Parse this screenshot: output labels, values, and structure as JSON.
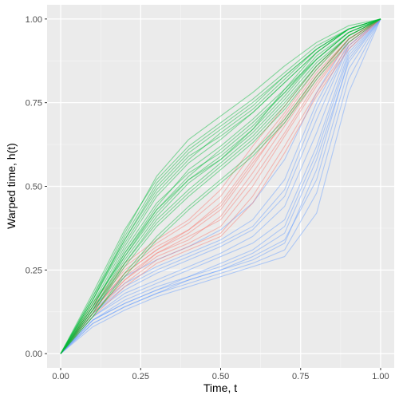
{
  "chart_data": {
    "type": "line",
    "title": "",
    "xlabel": "Time, t",
    "ylabel": "Warped time, h(t)",
    "xlim": [
      -0.0425,
      1.0425
    ],
    "ylim": [
      -0.0425,
      1.0425
    ],
    "x_ticks": [
      0.0,
      0.25,
      0.5,
      0.75,
      1.0
    ],
    "x_tick_labels": [
      "0.00",
      "0.25",
      "0.50",
      "0.75",
      "1.00"
    ],
    "y_ticks": [
      0.0,
      0.25,
      0.5,
      0.75,
      1.0
    ],
    "y_tick_labels": [
      "0.00",
      "0.25",
      "0.50",
      "0.75",
      "1.00"
    ],
    "grid": true,
    "legend": "none",
    "x": [
      0.0,
      0.1,
      0.2,
      0.3,
      0.4,
      0.5,
      0.6,
      0.7,
      0.8,
      0.9,
      1.0
    ],
    "series": [
      {
        "color": "#619CFF",
        "values": [
          0.0,
          0.1,
          0.15,
          0.19,
          0.22,
          0.25,
          0.28,
          0.33,
          0.55,
          0.88,
          1.0
        ]
      },
      {
        "color": "#619CFF",
        "values": [
          0.0,
          0.09,
          0.14,
          0.18,
          0.21,
          0.24,
          0.27,
          0.31,
          0.48,
          0.82,
          1.0
        ]
      },
      {
        "color": "#619CFF",
        "values": [
          0.0,
          0.11,
          0.17,
          0.21,
          0.25,
          0.29,
          0.33,
          0.4,
          0.62,
          0.9,
          1.0
        ]
      },
      {
        "color": "#619CFF",
        "values": [
          0.0,
          0.12,
          0.19,
          0.24,
          0.28,
          0.32,
          0.37,
          0.47,
          0.7,
          0.92,
          1.0
        ]
      },
      {
        "color": "#619CFF",
        "values": [
          0.0,
          0.1,
          0.16,
          0.2,
          0.23,
          0.26,
          0.3,
          0.36,
          0.58,
          0.87,
          1.0
        ]
      },
      {
        "color": "#619CFF",
        "values": [
          0.0,
          0.13,
          0.21,
          0.26,
          0.3,
          0.34,
          0.4,
          0.52,
          0.75,
          0.93,
          1.0
        ]
      },
      {
        "color": "#619CFF",
        "values": [
          0.0,
          0.08,
          0.13,
          0.17,
          0.2,
          0.23,
          0.26,
          0.29,
          0.42,
          0.78,
          1.0
        ]
      },
      {
        "color": "#619CFF",
        "values": [
          0.0,
          0.11,
          0.18,
          0.22,
          0.26,
          0.3,
          0.35,
          0.44,
          0.66,
          0.91,
          1.0
        ]
      },
      {
        "color": "#619CFF",
        "values": [
          0.0,
          0.12,
          0.2,
          0.25,
          0.29,
          0.33,
          0.38,
          0.49,
          0.73,
          0.92,
          1.0
        ]
      },
      {
        "color": "#619CFF",
        "values": [
          0.0,
          0.1,
          0.15,
          0.19,
          0.23,
          0.27,
          0.31,
          0.38,
          0.6,
          0.89,
          1.0
        ]
      },
      {
        "color": "#619CFF",
        "values": [
          0.0,
          0.14,
          0.23,
          0.28,
          0.32,
          0.37,
          0.45,
          0.58,
          0.78,
          0.94,
          1.0
        ]
      },
      {
        "color": "#619CFF",
        "values": [
          0.0,
          0.09,
          0.14,
          0.18,
          0.22,
          0.25,
          0.29,
          0.34,
          0.52,
          0.85,
          1.0
        ]
      },
      {
        "color": "#F8766D",
        "values": [
          0.0,
          0.12,
          0.22,
          0.29,
          0.33,
          0.38,
          0.5,
          0.65,
          0.8,
          0.93,
          1.0
        ]
      },
      {
        "color": "#F8766D",
        "values": [
          0.0,
          0.13,
          0.23,
          0.3,
          0.34,
          0.41,
          0.54,
          0.68,
          0.82,
          0.94,
          1.0
        ]
      },
      {
        "color": "#F8766D",
        "values": [
          0.0,
          0.14,
          0.25,
          0.32,
          0.37,
          0.45,
          0.58,
          0.71,
          0.84,
          0.94,
          1.0
        ]
      },
      {
        "color": "#F8766D",
        "values": [
          0.0,
          0.12,
          0.21,
          0.28,
          0.32,
          0.36,
          0.47,
          0.62,
          0.78,
          0.92,
          1.0
        ]
      },
      {
        "color": "#F8766D",
        "values": [
          0.0,
          0.15,
          0.27,
          0.34,
          0.4,
          0.49,
          0.62,
          0.74,
          0.86,
          0.95,
          1.0
        ]
      },
      {
        "color": "#F8766D",
        "values": [
          0.0,
          0.13,
          0.24,
          0.31,
          0.36,
          0.43,
          0.56,
          0.7,
          0.83,
          0.94,
          1.0
        ]
      },
      {
        "color": "#F8766D",
        "values": [
          0.0,
          0.11,
          0.2,
          0.27,
          0.31,
          0.35,
          0.45,
          0.6,
          0.77,
          0.91,
          1.0
        ]
      },
      {
        "color": "#F8766D",
        "values": [
          0.0,
          0.14,
          0.26,
          0.33,
          0.39,
          0.47,
          0.6,
          0.72,
          0.85,
          0.95,
          1.0
        ]
      },
      {
        "color": "#F8766D",
        "values": [
          0.0,
          0.12,
          0.22,
          0.3,
          0.35,
          0.4,
          0.52,
          0.66,
          0.81,
          0.93,
          1.0
        ]
      },
      {
        "color": "#F8766D",
        "values": [
          0.0,
          0.13,
          0.24,
          0.31,
          0.37,
          0.44,
          0.57,
          0.69,
          0.83,
          0.94,
          1.0
        ]
      },
      {
        "color": "#00BA38",
        "values": [
          0.0,
          0.14,
          0.3,
          0.44,
          0.55,
          0.62,
          0.7,
          0.79,
          0.88,
          0.96,
          1.0
        ]
      },
      {
        "color": "#00BA38",
        "values": [
          0.0,
          0.16,
          0.34,
          0.5,
          0.6,
          0.67,
          0.74,
          0.83,
          0.91,
          0.97,
          1.0
        ]
      },
      {
        "color": "#00BA38",
        "values": [
          0.0,
          0.12,
          0.26,
          0.38,
          0.47,
          0.55,
          0.63,
          0.73,
          0.85,
          0.95,
          1.0
        ]
      },
      {
        "color": "#00BA38",
        "values": [
          0.0,
          0.15,
          0.32,
          0.47,
          0.57,
          0.64,
          0.72,
          0.81,
          0.9,
          0.97,
          1.0
        ]
      },
      {
        "color": "#00BA38",
        "values": [
          0.0,
          0.13,
          0.28,
          0.41,
          0.51,
          0.58,
          0.66,
          0.76,
          0.87,
          0.95,
          1.0
        ]
      },
      {
        "color": "#00BA38",
        "values": [
          0.0,
          0.17,
          0.36,
          0.53,
          0.64,
          0.71,
          0.78,
          0.86,
          0.93,
          0.98,
          1.0
        ]
      },
      {
        "color": "#00BA38",
        "values": [
          0.0,
          0.11,
          0.24,
          0.35,
          0.44,
          0.52,
          0.6,
          0.7,
          0.83,
          0.94,
          1.0
        ]
      },
      {
        "color": "#00BA38",
        "values": [
          0.0,
          0.14,
          0.31,
          0.45,
          0.54,
          0.6,
          0.68,
          0.78,
          0.89,
          0.96,
          1.0
        ]
      },
      {
        "color": "#00BA38",
        "values": [
          0.0,
          0.16,
          0.33,
          0.48,
          0.58,
          0.66,
          0.73,
          0.82,
          0.91,
          0.97,
          1.0
        ]
      },
      {
        "color": "#00BA38",
        "values": [
          0.0,
          0.12,
          0.27,
          0.4,
          0.49,
          0.57,
          0.65,
          0.75,
          0.86,
          0.95,
          1.0
        ]
      },
      {
        "color": "#00BA38",
        "values": [
          0.0,
          0.15,
          0.29,
          0.42,
          0.52,
          0.59,
          0.67,
          0.77,
          0.88,
          0.96,
          1.0
        ]
      },
      {
        "color": "#00BA38",
        "values": [
          0.0,
          0.18,
          0.37,
          0.52,
          0.62,
          0.69,
          0.76,
          0.84,
          0.92,
          0.97,
          1.0
        ]
      },
      {
        "color": "#00BA38",
        "values": [
          0.0,
          0.13,
          0.29,
          0.43,
          0.53,
          0.61,
          0.69,
          0.78,
          0.88,
          0.96,
          1.0
        ]
      },
      {
        "color": "#00BA38",
        "values": [
          0.0,
          0.11,
          0.23,
          0.34,
          0.43,
          0.51,
          0.59,
          0.69,
          0.82,
          0.93,
          1.0
        ]
      },
      {
        "color": "#00BA38",
        "values": [
          0.0,
          0.16,
          0.35,
          0.51,
          0.61,
          0.68,
          0.75,
          0.83,
          0.91,
          0.97,
          1.0
        ]
      },
      {
        "color": "#00BA38",
        "values": [
          0.0,
          0.14,
          0.3,
          0.43,
          0.52,
          0.58,
          0.67,
          0.79,
          0.9,
          0.97,
          1.0
        ]
      },
      {
        "color": "#00BA38",
        "values": [
          0.0,
          0.13,
          0.27,
          0.39,
          0.48,
          0.56,
          0.64,
          0.74,
          0.86,
          0.95,
          1.0
        ]
      },
      {
        "color": "#00BA38",
        "values": [
          0.0,
          0.17,
          0.34,
          0.49,
          0.59,
          0.65,
          0.72,
          0.81,
          0.9,
          0.97,
          1.0
        ]
      }
    ]
  }
}
